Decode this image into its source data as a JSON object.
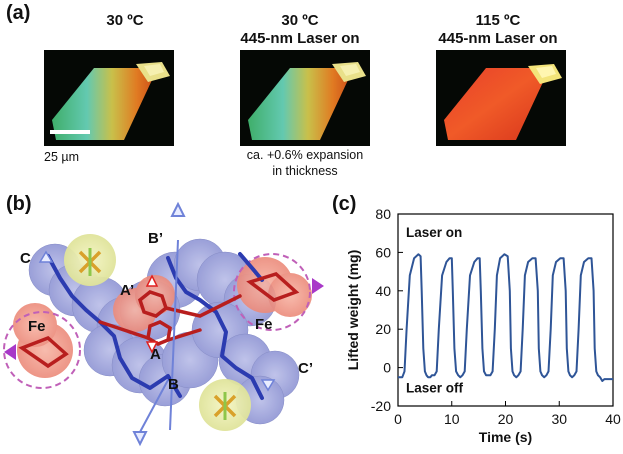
{
  "panel_a": {
    "label": "(a)",
    "images": [
      {
        "header_line1": "30 ºC",
        "header_line2": "",
        "caption_line1": "",
        "caption_line2": ""
      },
      {
        "header_line1": "30 ºC",
        "header_line2": "445-nm Laser on",
        "caption_line1": "ca. +0.6% expansion",
        "caption_line2": "in thickness"
      },
      {
        "header_line1": "115 ºC",
        "header_line2": "445-nm Laser on",
        "caption_line1": "",
        "caption_line2": ""
      }
    ],
    "scale_bar_label": "25 µm"
  },
  "panel_b": {
    "label": "(b)",
    "atom_labels": {
      "c": "C",
      "b_prime": "B’",
      "a_prime": "A’",
      "fe_left": "Fe",
      "fe_right": "Fe",
      "a": "A",
      "b": "B",
      "c_prime": "C’"
    }
  },
  "panel_c": {
    "label": "(c)",
    "annotation_on": "Laser on",
    "annotation_off": "Laser off"
  },
  "chart_data": {
    "type": "line",
    "xlabel": "Time (s)",
    "ylabel": "Lifted weight (mg)",
    "xlim": [
      0,
      40
    ],
    "ylim": [
      -20,
      80
    ],
    "xticks": [
      0,
      10,
      20,
      30,
      40
    ],
    "yticks": [
      -20,
      0,
      20,
      40,
      60,
      80
    ],
    "grid": false,
    "series": [
      {
        "color": "#2f5597",
        "x": [
          0,
          0.8,
          1.2,
          1.6,
          2.2,
          3.0,
          3.8,
          4.2,
          4.4,
          4.7,
          5.0,
          5.3,
          5.6,
          6.0,
          6.3,
          6.8,
          7.2,
          7.6,
          8.2,
          9.0,
          9.6,
          10.0,
          10.2,
          10.5,
          10.8,
          11.2,
          11.6,
          12.0,
          12.4,
          12.8,
          13.4,
          14.2,
          14.8,
          15.2,
          15.4,
          15.7,
          16.0,
          16.4,
          16.8,
          17.2,
          17.6,
          18.0,
          18.4,
          19.0,
          19.8,
          20.4,
          20.8,
          21.0,
          21.3,
          21.6,
          22.0,
          22.4,
          22.8,
          23.2,
          23.6,
          24.2,
          25.0,
          25.6,
          26.0,
          26.2,
          26.5,
          26.8,
          27.2,
          27.6,
          28.0,
          28.4,
          28.8,
          29.4,
          30.2,
          30.8,
          31.2,
          31.4,
          31.7,
          32.0,
          32.4,
          32.8,
          33.2,
          33.6,
          34.0,
          34.6,
          35.4,
          36.0,
          36.4,
          36.6,
          36.9,
          37.2,
          37.6,
          38.0,
          38.4,
          38.8,
          39.2,
          40.0
        ],
        "y": [
          -5,
          -5,
          -2,
          20,
          48,
          57,
          59,
          58,
          40,
          10,
          -2,
          -4,
          -5,
          -5,
          -4,
          -4,
          -2,
          20,
          48,
          55,
          57,
          57,
          40,
          10,
          -2,
          -4,
          -5,
          -4,
          -2,
          20,
          48,
          55,
          57,
          57,
          40,
          10,
          -2,
          -4,
          -4,
          -4,
          -2,
          20,
          48,
          57,
          59,
          58,
          40,
          10,
          -2,
          -4,
          -5,
          -4,
          -2,
          20,
          48,
          55,
          57,
          57,
          40,
          10,
          -2,
          -4,
          -5,
          -4,
          -2,
          20,
          48,
          55,
          57,
          57,
          40,
          10,
          -2,
          -4,
          -5,
          -4,
          -2,
          20,
          48,
          55,
          57,
          57,
          40,
          10,
          -2,
          -4,
          -5,
          -7,
          -6,
          -6,
          -6,
          -6
        ]
      }
    ]
  }
}
